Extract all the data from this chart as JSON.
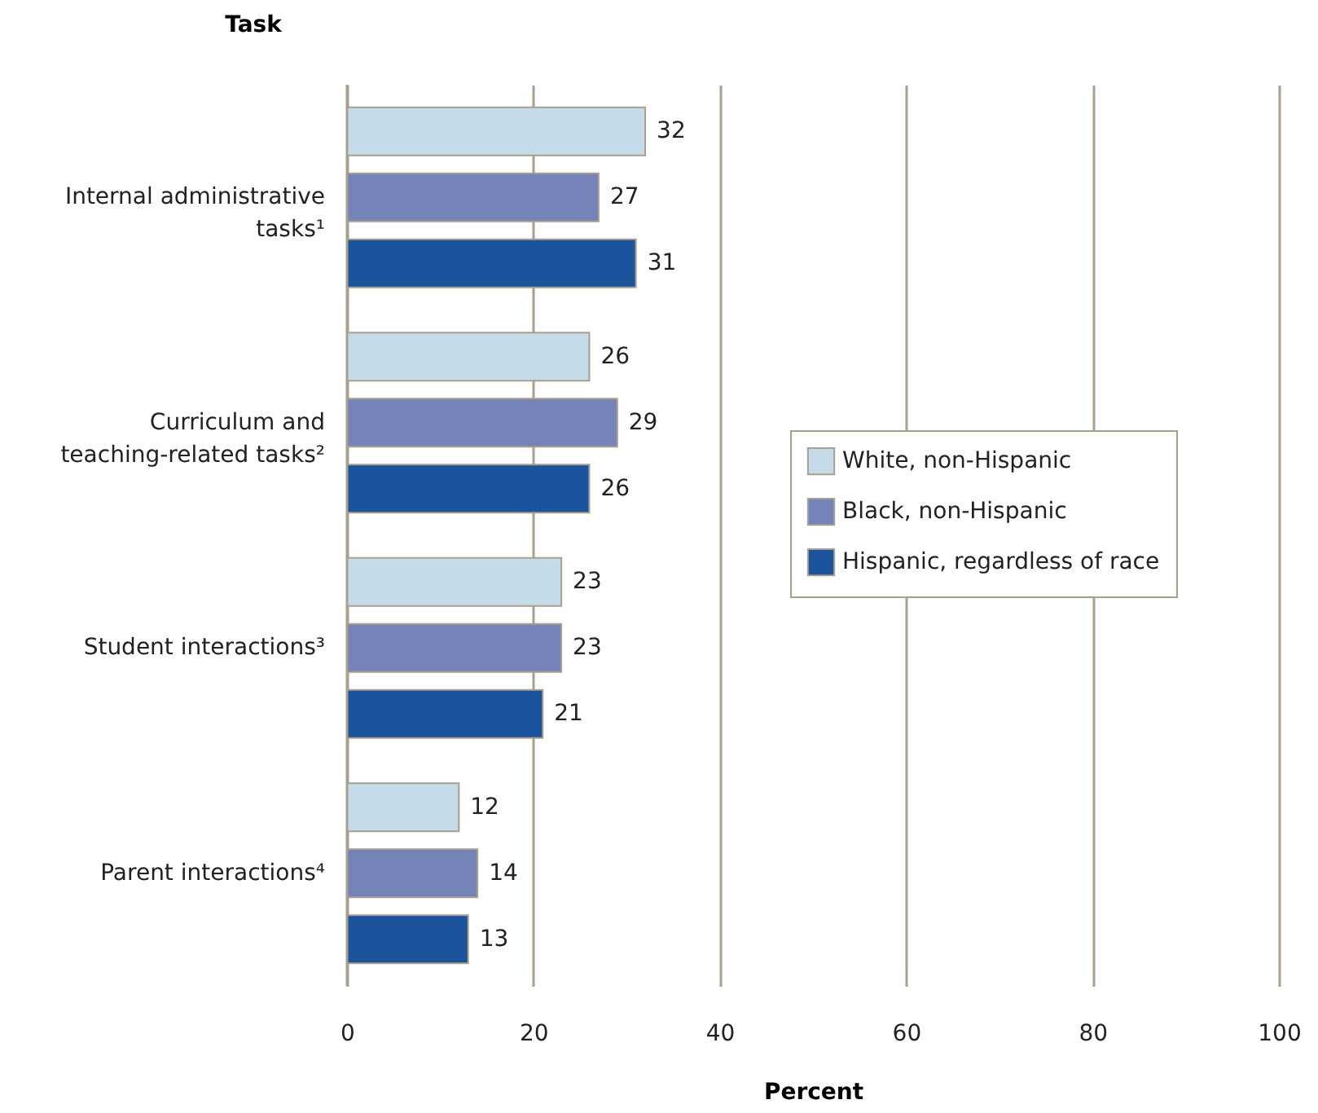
{
  "chart_data": {
    "type": "bar",
    "orientation": "horizontal",
    "ylabel": "Task",
    "xlabel": "Percent",
    "categories": [
      "Internal administrative tasks¹",
      "Curriculum and teaching-related tasks²",
      "Student interactions³",
      "Parent interactions⁴"
    ],
    "series": [
      {
        "name": "White, non-Hispanic",
        "color": "#c6dbea",
        "values": [
          32,
          26,
          23,
          12
        ]
      },
      {
        "name": "Black, non-Hispanic",
        "color": "#7583b9",
        "values": [
          27,
          29,
          23,
          14
        ]
      },
      {
        "name": "Hispanic, regardless of race",
        "color": "#1b549d",
        "values": [
          31,
          26,
          21,
          13
        ]
      }
    ],
    "xlim": [
      0,
      100
    ],
    "xticks": [
      0,
      20,
      40,
      60,
      80,
      100
    ],
    "grid": "x",
    "legend": "right",
    "data_labels": true
  }
}
